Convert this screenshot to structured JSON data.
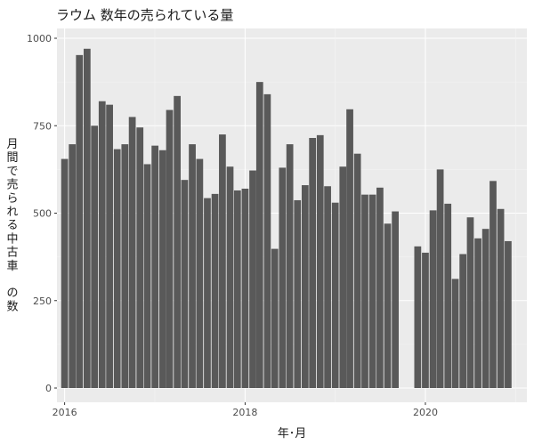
{
  "chart_data": {
    "type": "bar",
    "title": "ラウム 数年の売られている量",
    "xlabel": "年･月",
    "ylabel": "月間で売られる中古車 の数",
    "ylim": [
      0,
      1000
    ],
    "y_ticks": [
      0,
      250,
      500,
      750,
      1000
    ],
    "y_tick_labels": [
      "0",
      "250",
      "500",
      "750",
      "1000"
    ],
    "x_ticks": [
      "2016-01-01",
      "2018-01-01",
      "2020-01-01"
    ],
    "x_tick_labels": [
      "2016",
      "2018",
      "2020"
    ],
    "xlim": [
      "2015-12-01",
      "2021-02-15"
    ],
    "grid": true,
    "bar_color": "#595959",
    "panel_color": "#ebebeb",
    "x": [
      "2016-01",
      "2016-02",
      "2016-03",
      "2016-04",
      "2016-05",
      "2016-06",
      "2016-07",
      "2016-08",
      "2016-09",
      "2016-10",
      "2016-11",
      "2016-12",
      "2017-01",
      "2017-02",
      "2017-03",
      "2017-04",
      "2017-05",
      "2017-06",
      "2017-07",
      "2017-08",
      "2017-09",
      "2017-10",
      "2017-11",
      "2017-12",
      "2018-01",
      "2018-02",
      "2018-03",
      "2018-04",
      "2018-05",
      "2018-06",
      "2018-07",
      "2018-08",
      "2018-09",
      "2018-10",
      "2018-11",
      "2018-12",
      "2019-01",
      "2019-02",
      "2019-03",
      "2019-04",
      "2019-05",
      "2019-06",
      "2019-07",
      "2019-08",
      "2019-09",
      "2019-12",
      "2020-01",
      "2020-02",
      "2020-03",
      "2020-04",
      "2020-05",
      "2020-06",
      "2020-07",
      "2020-08",
      "2020-09",
      "2020-10",
      "2020-11",
      "2020-12"
    ],
    "values": [
      655,
      697,
      952,
      970,
      750,
      820,
      810,
      683,
      697,
      775,
      745,
      640,
      693,
      680,
      795,
      835,
      595,
      697,
      655,
      543,
      555,
      725,
      633,
      565,
      570,
      622,
      875,
      840,
      398,
      630,
      697,
      537,
      580,
      715,
      723,
      577,
      530,
      633,
      797,
      670,
      553,
      553,
      573,
      470,
      505,
      405,
      387,
      508,
      625,
      527,
      312,
      383,
      488,
      428,
      455,
      592,
      512,
      420
    ]
  }
}
